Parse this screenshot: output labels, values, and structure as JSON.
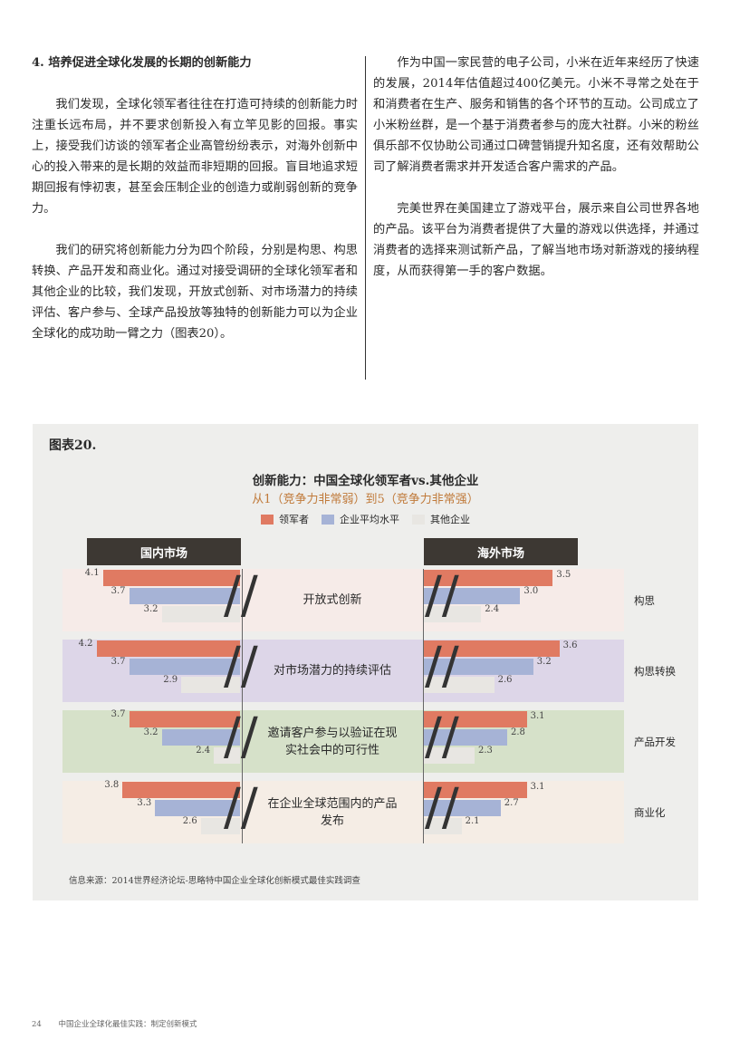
{
  "left_column": {
    "title": "4. 培养促进全球化发展的长期的创新能力",
    "paragraphs": [
      "我们发现，全球化领军者往往在打造可持续的创新能力时注重长远布局，并不要求创新投入有立竿见影的回报。事实上，接受我们访谈的领军者企业高管纷纷表示，对海外创新中心的投入带来的是长期的效益而非短期的回报。盲目地追求短期回报有悖初衷，甚至会压制企业的创造力或削弱创新的竞争力。",
      "我们的研究将创新能力分为四个阶段，分别是构思、构思转换、产品开发和商业化。通过对接受调研的全球化领军者和其他企业的比较，我们发现，开放式创新、对市场潜力的持续评估、客户参与、全球产品投放等独特的创新能力可以为企业全球化的成功助一臂之力（图表20）。"
    ]
  },
  "right_column": {
    "paragraphs": [
      "作为中国一家民营的电子公司，小米在近年来经历了快速的发展，2014年估值超过400亿美元。小米不寻常之处在于和消费者在生产、服务和销售的各个环节的互动。公司成立了小米粉丝群，是一个基于消费者参与的庞大社群。小米的粉丝俱乐部不仅协助公司通过口碑营销提升知名度，还有效帮助公司了解消费者需求并开发适合客户需求的产品。",
      "完美世界在美国建立了游戏平台，展示来自公司世界各地的产品。该平台为消费者提供了大量的游戏以供选择，并通过消费者的选择来测试新产品，了解当地市场对新游戏的接纳程度，从而获得第一手的客户数据。"
    ]
  },
  "figure": {
    "label": "图表20.",
    "source": "信息来源：2014世界经济论坛-思略特中国企业全球化创新模式最佳实践调查"
  },
  "chart_data": {
    "type": "bar",
    "title": "创新能力：中国全球化领军者vs.其他企业",
    "subtitle": "从1（竞争力非常弱）到5（竞争力非常强）",
    "series_names": [
      "领军者",
      "企业平均水平",
      "其他企业"
    ],
    "colors": [
      "#e07a62",
      "#a6b3d6",
      "#e8e6e2"
    ],
    "panels": [
      "国内市场",
      "海外市场"
    ],
    "rows": [
      {
        "category": "开放式创新",
        "stage": "构思",
        "band_color": "#f6ebe8",
        "domestic": [
          4.1,
          3.7,
          3.2
        ],
        "overseas": [
          3.5,
          3.0,
          2.4
        ]
      },
      {
        "category": "对市场潜力的持续评估",
        "stage": "构思转换",
        "band_color": "#ddd6e8",
        "domestic": [
          4.2,
          3.7,
          2.9
        ],
        "overseas": [
          3.6,
          3.2,
          2.6
        ]
      },
      {
        "category": "邀请客户参与以验证在现实社会中的可行性",
        "stage": "产品开发",
        "band_color": "#d6e1c9",
        "domestic": [
          3.7,
          3.2,
          2.4
        ],
        "overseas": [
          3.1,
          2.8,
          2.3
        ]
      },
      {
        "category": "在企业全球范围内的产品发布",
        "stage": "商业化",
        "band_color": "#f5ede5",
        "domestic": [
          3.8,
          3.3,
          2.6
        ],
        "overseas": [
          3.1,
          2.7,
          2.1
        ]
      }
    ]
  },
  "footer": {
    "page_number": "24",
    "text": "中国企业全球化最佳实践：制定创新模式"
  }
}
